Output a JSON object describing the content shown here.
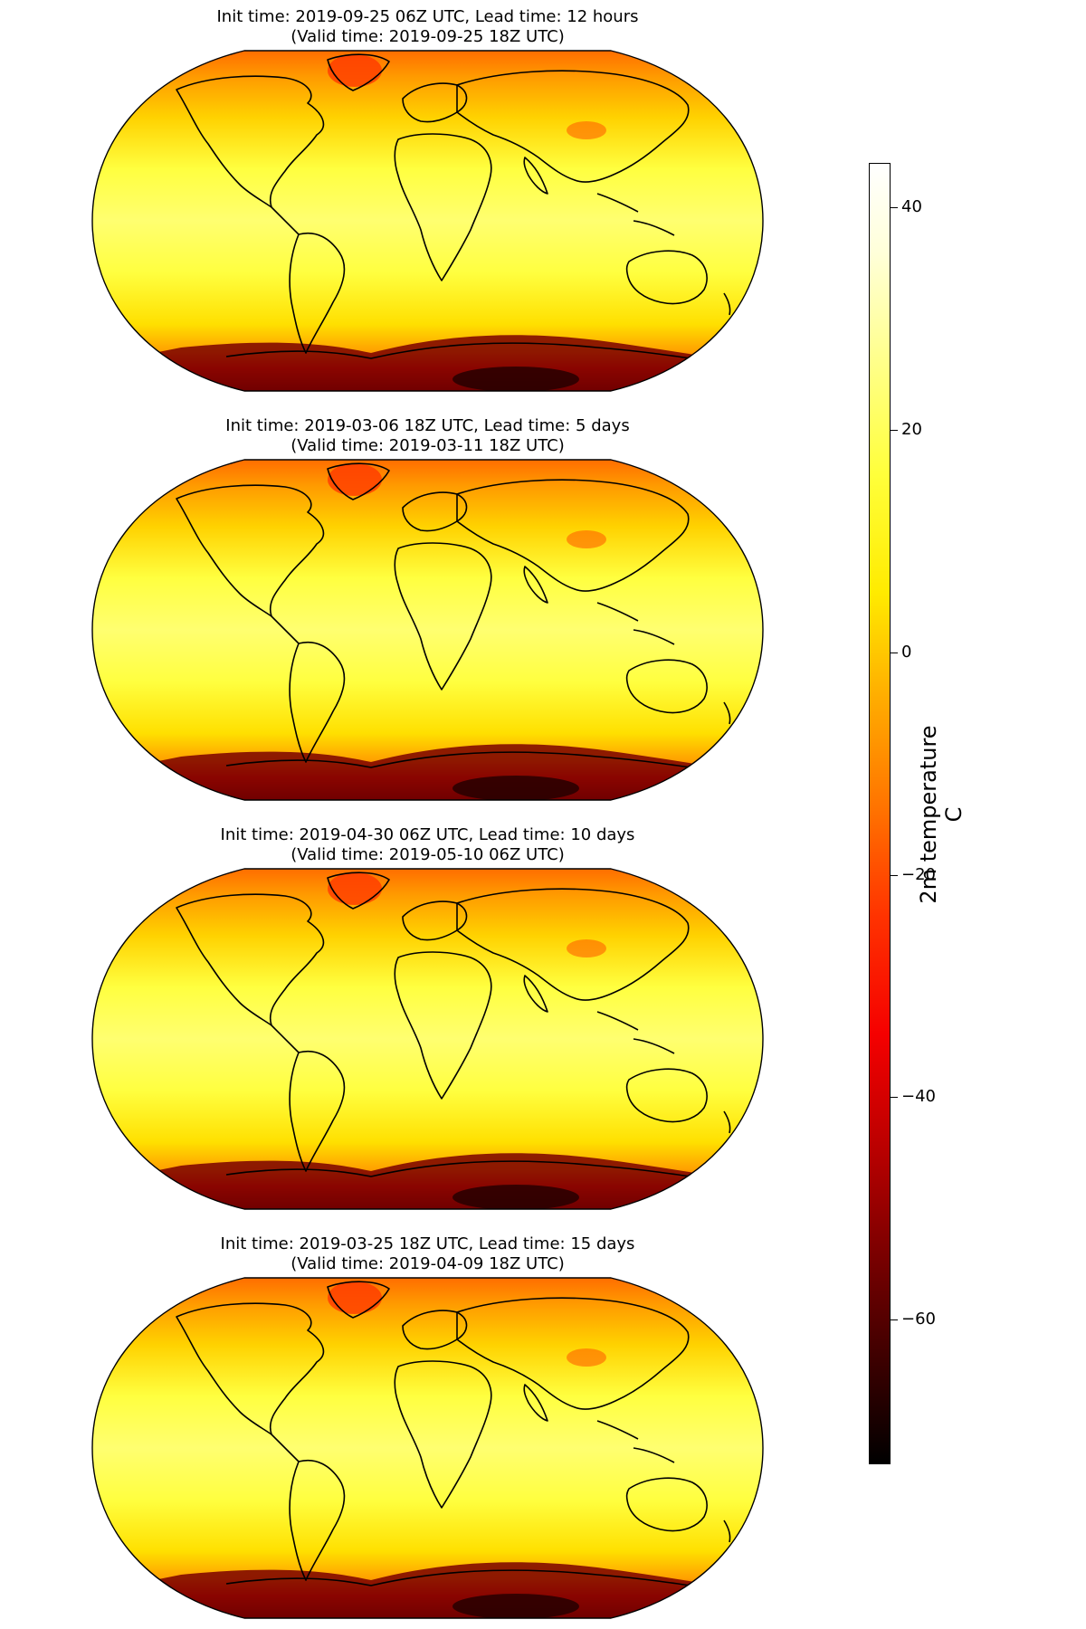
{
  "panels": [
    {
      "title": "Init time: 2019-09-25 06Z UTC, Lead time: 12 hours",
      "subtitle": "(Valid time: 2019-09-25 18Z UTC)"
    },
    {
      "title": "Init time: 2019-03-06 18Z UTC, Lead time: 5 days",
      "subtitle": "(Valid time: 2019-03-11 18Z UTC)"
    },
    {
      "title": "Init time: 2019-04-30 06Z UTC, Lead time: 10 days",
      "subtitle": "(Valid time: 2019-05-10 06Z UTC)"
    },
    {
      "title": "Init time: 2019-03-25 18Z UTC, Lead time: 15 days",
      "subtitle": "(Valid time: 2019-04-09 18Z UTC)"
    }
  ],
  "colorbar": {
    "label_line1": "2m temperature",
    "label_line2": "C",
    "min": -73,
    "max": 44,
    "ticks": [
      "40",
      "20",
      "0",
      "−20",
      "−40",
      "−60"
    ],
    "tick_values": [
      40,
      20,
      0,
      -20,
      -40,
      -60
    ],
    "colormap": "hot"
  }
}
